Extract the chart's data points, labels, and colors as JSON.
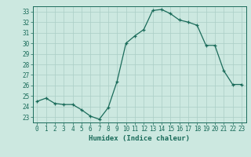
{
  "x": [
    0,
    1,
    2,
    3,
    4,
    5,
    6,
    7,
    8,
    9,
    10,
    11,
    12,
    13,
    14,
    15,
    16,
    17,
    18,
    19,
    20,
    21,
    22,
    23
  ],
  "y": [
    24.5,
    24.8,
    24.3,
    24.2,
    24.2,
    23.7,
    23.1,
    22.8,
    23.9,
    26.4,
    30.0,
    30.7,
    31.3,
    33.1,
    33.2,
    32.8,
    32.2,
    32.0,
    31.7,
    29.8,
    29.8,
    27.4,
    26.1,
    26.1
  ],
  "line_color": "#1a6b5a",
  "bg_color": "#cce8e0",
  "grid_color": "#aacec6",
  "xlabel": "Humidex (Indice chaleur)",
  "xlim": [
    -0.5,
    23.5
  ],
  "ylim": [
    22.5,
    33.5
  ],
  "yticks": [
    23,
    24,
    25,
    26,
    27,
    28,
    29,
    30,
    31,
    32,
    33
  ],
  "xticks": [
    0,
    1,
    2,
    3,
    4,
    5,
    6,
    7,
    8,
    9,
    10,
    11,
    12,
    13,
    14,
    15,
    16,
    17,
    18,
    19,
    20,
    21,
    22,
    23
  ],
  "tick_color": "#1a6b5a",
  "label_fontsize": 6.5,
  "tick_fontsize": 5.5,
  "marker": "+",
  "marker_size": 3.5,
  "line_width": 0.9
}
